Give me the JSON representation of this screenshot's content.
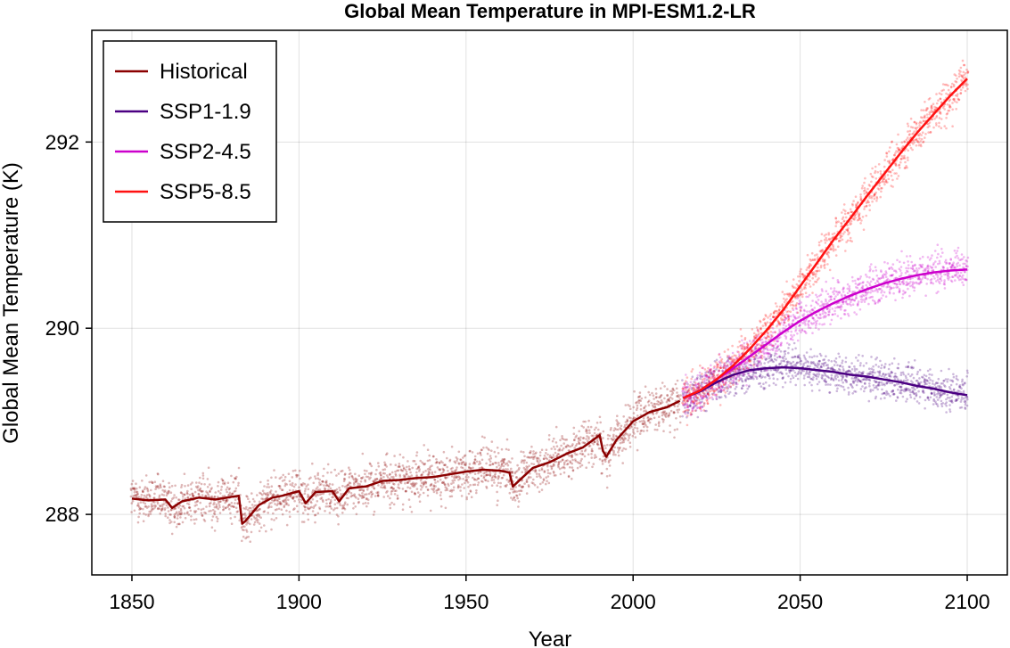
{
  "chart_data": {
    "type": "line",
    "title": "Global Mean Temperature in MPI-ESM1.2-LR",
    "xlabel": "Year",
    "ylabel": "Global Mean Temperature (K)",
    "xlim": [
      1838,
      2112
    ],
    "ylim": [
      287.35,
      293.2
    ],
    "xticks": [
      1850,
      1900,
      1950,
      2000,
      2050,
      2100
    ],
    "yticks": [
      288,
      290,
      292
    ],
    "grid": true,
    "legend_position": "top-left",
    "series": [
      {
        "name": "Historical",
        "color": "#8b0000",
        "spread": 0.28,
        "x": [
          1850,
          1855,
          1860,
          1862,
          1865,
          1870,
          1875,
          1880,
          1882,
          1883,
          1884,
          1888,
          1892,
          1895,
          1900,
          1902,
          1905,
          1910,
          1912,
          1915,
          1920,
          1925,
          1930,
          1935,
          1940,
          1945,
          1950,
          1955,
          1960,
          1963,
          1964,
          1967,
          1970,
          1975,
          1980,
          1985,
          1990,
          1991,
          1992,
          1995,
          2000,
          2005,
          2010,
          2014
        ],
        "y": [
          288.17,
          288.15,
          288.16,
          288.07,
          288.14,
          288.18,
          288.16,
          288.19,
          288.2,
          287.9,
          287.93,
          288.1,
          288.18,
          288.2,
          288.25,
          288.12,
          288.24,
          288.25,
          288.14,
          288.28,
          288.3,
          288.36,
          288.37,
          288.39,
          288.4,
          288.43,
          288.46,
          288.48,
          288.47,
          288.45,
          288.3,
          288.4,
          288.5,
          288.56,
          288.65,
          288.72,
          288.85,
          288.68,
          288.62,
          288.8,
          289.0,
          289.1,
          289.15,
          289.22
        ]
      },
      {
        "name": "SSP1-1.9",
        "color": "#4b0082",
        "spread": 0.22,
        "x": [
          2015,
          2020,
          2025,
          2030,
          2035,
          2040,
          2045,
          2050,
          2055,
          2060,
          2065,
          2070,
          2075,
          2080,
          2085,
          2090,
          2095,
          2100
        ],
        "y": [
          289.25,
          289.32,
          289.42,
          289.5,
          289.55,
          289.57,
          289.58,
          289.57,
          289.55,
          289.53,
          289.5,
          289.48,
          289.45,
          289.42,
          289.38,
          289.35,
          289.31,
          289.28
        ]
      },
      {
        "name": "SSP2-4.5",
        "color": "#cc00cc",
        "spread": 0.22,
        "x": [
          2015,
          2020,
          2025,
          2030,
          2035,
          2040,
          2045,
          2050,
          2055,
          2060,
          2065,
          2070,
          2075,
          2080,
          2085,
          2090,
          2095,
          2100
        ],
        "y": [
          289.25,
          289.33,
          289.45,
          289.57,
          289.7,
          289.83,
          289.96,
          290.08,
          290.18,
          290.27,
          290.35,
          290.42,
          290.48,
          290.53,
          290.57,
          290.6,
          290.62,
          290.63
        ]
      },
      {
        "name": "SSP5-8.5",
        "color": "#ff1111",
        "spread": 0.24,
        "x": [
          2015,
          2020,
          2025,
          2030,
          2035,
          2040,
          2045,
          2050,
          2055,
          2060,
          2065,
          2070,
          2075,
          2080,
          2085,
          2090,
          2095,
          2100
        ],
        "y": [
          289.25,
          289.33,
          289.45,
          289.6,
          289.78,
          289.98,
          290.2,
          290.45,
          290.7,
          290.95,
          291.18,
          291.42,
          291.65,
          291.88,
          292.1,
          292.3,
          292.5,
          292.68
        ]
      }
    ]
  }
}
